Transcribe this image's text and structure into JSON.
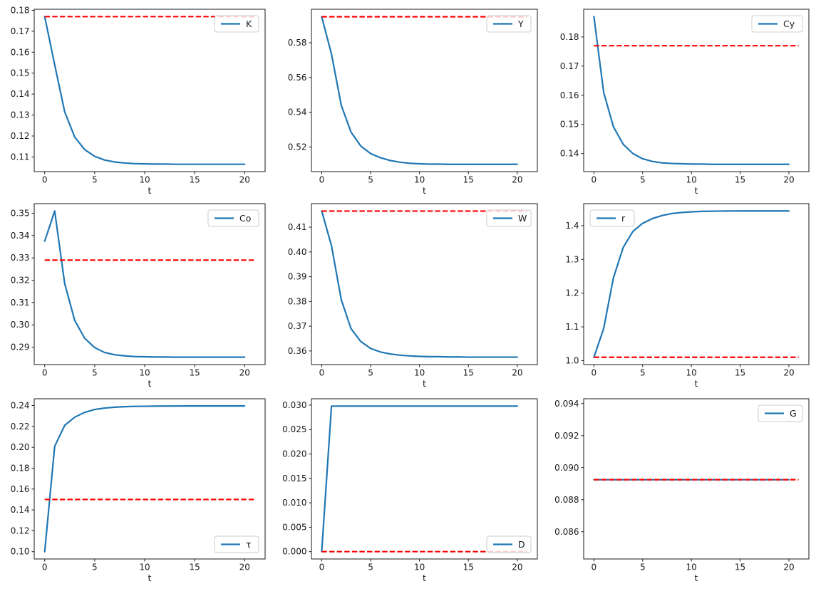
{
  "figure": {
    "background": "#ffffff",
    "colors": {
      "series_line": "#1f77b4",
      "reference_line": "#ff0000",
      "axes": "#1a1a1a",
      "tick_text": "#1a1a1a",
      "legend_border": "#cccccc",
      "legend_background": "#ffffff"
    }
  },
  "chart_data": [
    {
      "type": "line",
      "name": "K",
      "legend_label": "K",
      "legend_position": "upper right",
      "xlabel": "t",
      "xlim": [
        -1.05,
        22.05
      ],
      "xticks": [
        0,
        5,
        10,
        15,
        20
      ],
      "x": [
        0,
        1,
        2,
        3,
        4,
        5,
        6,
        7,
        8,
        9,
        10,
        11,
        12,
        13,
        14,
        15,
        16,
        17,
        18,
        19,
        20
      ],
      "values": [
        0.177,
        0.154,
        0.1315,
        0.1195,
        0.1135,
        0.1103,
        0.1085,
        0.1076,
        0.1071,
        0.1068,
        0.1067,
        0.1066,
        0.1066,
        0.1065,
        0.1065,
        0.1065,
        0.1065,
        0.1065,
        0.1065,
        0.1065,
        0.1065
      ],
      "reference_value": 0.177,
      "reference_x": [
        0,
        21
      ],
      "ylim": [
        0.103,
        0.1805
      ],
      "yticks": [
        0.11,
        0.12,
        0.13,
        0.14,
        0.15,
        0.16,
        0.17,
        0.18
      ],
      "ytick_decimals": 2
    },
    {
      "type": "line",
      "name": "Y",
      "legend_label": "Y",
      "legend_position": "upper right",
      "xlabel": "t",
      "xlim": [
        -1.05,
        22.05
      ],
      "xticks": [
        0,
        5,
        10,
        15,
        20
      ],
      "x": [
        0,
        1,
        2,
        3,
        4,
        5,
        6,
        7,
        8,
        9,
        10,
        11,
        12,
        13,
        14,
        15,
        16,
        17,
        18,
        19,
        20
      ],
      "values": [
        0.595,
        0.5735,
        0.544,
        0.5285,
        0.5205,
        0.5162,
        0.5138,
        0.5122,
        0.5112,
        0.5106,
        0.5103,
        0.5101,
        0.5101,
        0.51,
        0.51,
        0.51,
        0.51,
        0.51,
        0.51,
        0.51,
        0.51
      ],
      "reference_value": 0.595,
      "reference_x": [
        0,
        21
      ],
      "ylim": [
        0.5058,
        0.5993
      ],
      "yticks": [
        0.52,
        0.54,
        0.56,
        0.58
      ],
      "ytick_decimals": 2
    },
    {
      "type": "line",
      "name": "Cy",
      "legend_label": "Cy",
      "legend_position": "upper right",
      "xlabel": "t",
      "xlim": [
        -1.05,
        22.05
      ],
      "xticks": [
        0,
        5,
        10,
        15,
        20
      ],
      "x": [
        0,
        1,
        2,
        3,
        4,
        5,
        6,
        7,
        8,
        9,
        10,
        11,
        12,
        13,
        14,
        15,
        16,
        17,
        18,
        19,
        20
      ],
      "values": [
        0.187,
        0.161,
        0.1492,
        0.1432,
        0.14,
        0.1382,
        0.1373,
        0.1368,
        0.1366,
        0.1365,
        0.1364,
        0.1364,
        0.1363,
        0.1363,
        0.1363,
        0.1363,
        0.1363,
        0.1363,
        0.1363,
        0.1363,
        0.1363
      ],
      "reference_value": 0.177,
      "reference_x": [
        0,
        21
      ],
      "ylim": [
        0.1338,
        0.1895
      ],
      "yticks": [
        0.14,
        0.15,
        0.16,
        0.17,
        0.18
      ],
      "ytick_decimals": 2
    },
    {
      "type": "line",
      "name": "Co",
      "legend_label": "Co",
      "legend_position": "upper right",
      "xlabel": "t",
      "xlim": [
        -1.05,
        22.05
      ],
      "xticks": [
        0,
        5,
        10,
        15,
        20
      ],
      "x": [
        0,
        1,
        2,
        3,
        4,
        5,
        6,
        7,
        8,
        9,
        10,
        11,
        12,
        13,
        14,
        15,
        16,
        17,
        18,
        19,
        20
      ],
      "values": [
        0.3375,
        0.351,
        0.3185,
        0.302,
        0.294,
        0.2898,
        0.2876,
        0.2866,
        0.2861,
        0.2858,
        0.2857,
        0.2856,
        0.2856,
        0.2855,
        0.2855,
        0.2855,
        0.2855,
        0.2855,
        0.2855,
        0.2855,
        0.2855
      ],
      "reference_value": 0.329,
      "reference_x": [
        0,
        21
      ],
      "ylim": [
        0.2822,
        0.3543
      ],
      "yticks": [
        0.29,
        0.3,
        0.31,
        0.32,
        0.33,
        0.34,
        0.35
      ],
      "ytick_decimals": 2
    },
    {
      "type": "line",
      "name": "W",
      "legend_label": "W",
      "legend_position": "upper right",
      "xlabel": "t",
      "xlim": [
        -1.05,
        22.05
      ],
      "xticks": [
        0,
        5,
        10,
        15,
        20
      ],
      "x": [
        0,
        1,
        2,
        3,
        4,
        5,
        6,
        7,
        8,
        9,
        10,
        11,
        12,
        13,
        14,
        15,
        16,
        17,
        18,
        19,
        20
      ],
      "values": [
        0.4165,
        0.4025,
        0.3807,
        0.369,
        0.3638,
        0.361,
        0.3596,
        0.3588,
        0.3583,
        0.358,
        0.3578,
        0.3577,
        0.3577,
        0.3576,
        0.3576,
        0.3575,
        0.3575,
        0.3575,
        0.3575,
        0.3575,
        0.3575
      ],
      "reference_value": 0.4165,
      "reference_x": [
        0,
        21
      ],
      "ylim": [
        0.3545,
        0.4195
      ],
      "yticks": [
        0.36,
        0.37,
        0.38,
        0.39,
        0.4,
        0.41
      ],
      "ytick_decimals": 2
    },
    {
      "type": "line",
      "name": "r",
      "legend_label": "r",
      "legend_position": "upper left",
      "xlabel": "t",
      "xlim": [
        -1.05,
        22.05
      ],
      "xticks": [
        0,
        5,
        10,
        15,
        20
      ],
      "x": [
        0,
        1,
        2,
        3,
        4,
        5,
        6,
        7,
        8,
        9,
        10,
        11,
        12,
        13,
        14,
        15,
        16,
        17,
        18,
        19,
        20
      ],
      "values": [
        1.01,
        1.095,
        1.245,
        1.335,
        1.383,
        1.407,
        1.421,
        1.43,
        1.436,
        1.439,
        1.441,
        1.4422,
        1.4428,
        1.4432,
        1.4434,
        1.4435,
        1.4435,
        1.4436,
        1.4436,
        1.4436,
        1.4436
      ],
      "reference_value": 1.01,
      "reference_x": [
        0,
        21
      ],
      "ylim": [
        0.9883,
        1.4652
      ],
      "yticks": [
        1.0,
        1.1,
        1.2,
        1.3,
        1.4
      ],
      "ytick_decimals": 1
    },
    {
      "type": "line",
      "name": "tau",
      "legend_label": "τ",
      "legend_position": "lower right",
      "xlabel": "t",
      "xlim": [
        -1.05,
        22.05
      ],
      "xticks": [
        0,
        5,
        10,
        15,
        20
      ],
      "x": [
        0,
        1,
        2,
        3,
        4,
        5,
        6,
        7,
        8,
        9,
        10,
        11,
        12,
        13,
        14,
        15,
        16,
        17,
        18,
        19,
        20
      ],
      "values": [
        0.1,
        0.201,
        0.221,
        0.2288,
        0.2335,
        0.2362,
        0.2376,
        0.2384,
        0.2389,
        0.2392,
        0.2393,
        0.2394,
        0.2395,
        0.2395,
        0.2396,
        0.2396,
        0.2396,
        0.2396,
        0.2396,
        0.2396,
        0.2396
      ],
      "reference_value": 0.15,
      "reference_x": [
        0,
        21
      ],
      "ylim": [
        0.093,
        0.2465
      ],
      "yticks": [
        0.1,
        0.12,
        0.14,
        0.16,
        0.18,
        0.2,
        0.22,
        0.24
      ],
      "ytick_decimals": 2
    },
    {
      "type": "line",
      "name": "D",
      "legend_label": "D",
      "legend_position": "lower right",
      "xlabel": "t",
      "xlim": [
        -1.05,
        22.05
      ],
      "xticks": [
        0,
        5,
        10,
        15,
        20
      ],
      "x": [
        0,
        1,
        2,
        3,
        4,
        5,
        6,
        7,
        8,
        9,
        10,
        11,
        12,
        13,
        14,
        15,
        16,
        17,
        18,
        19,
        20
      ],
      "values": [
        0.0,
        0.0298,
        0.0298,
        0.0298,
        0.0298,
        0.0298,
        0.0298,
        0.0298,
        0.0298,
        0.0298,
        0.0298,
        0.0298,
        0.0298,
        0.0298,
        0.0298,
        0.0298,
        0.0298,
        0.0298,
        0.0298,
        0.0298,
        0.0298
      ],
      "reference_value": 0.0,
      "reference_x": [
        0,
        21
      ],
      "ylim": [
        -0.0015,
        0.0313
      ],
      "yticks": [
        0.0,
        0.005,
        0.01,
        0.015,
        0.02,
        0.025,
        0.03
      ],
      "ytick_decimals": 3
    },
    {
      "type": "line",
      "name": "G",
      "legend_label": "G",
      "legend_position": "upper right",
      "xlabel": "t",
      "xlim": [
        -1.05,
        22.05
      ],
      "xticks": [
        0,
        5,
        10,
        15,
        20
      ],
      "x": [
        0,
        1,
        2,
        3,
        4,
        5,
        6,
        7,
        8,
        9,
        10,
        11,
        12,
        13,
        14,
        15,
        16,
        17,
        18,
        19,
        20
      ],
      "values": [
        0.08925,
        0.08925,
        0.08925,
        0.08925,
        0.08925,
        0.08925,
        0.08925,
        0.08925,
        0.08925,
        0.08925,
        0.08925,
        0.08925,
        0.08925,
        0.08925,
        0.08925,
        0.08925,
        0.08925,
        0.08925,
        0.08925,
        0.08925,
        0.08925
      ],
      "reference_value": 0.08925,
      "reference_x": [
        0,
        21
      ],
      "ylim": [
        0.0843,
        0.0943
      ],
      "yticks": [
        0.086,
        0.088,
        0.09,
        0.092,
        0.094
      ],
      "ytick_decimals": 3
    }
  ]
}
